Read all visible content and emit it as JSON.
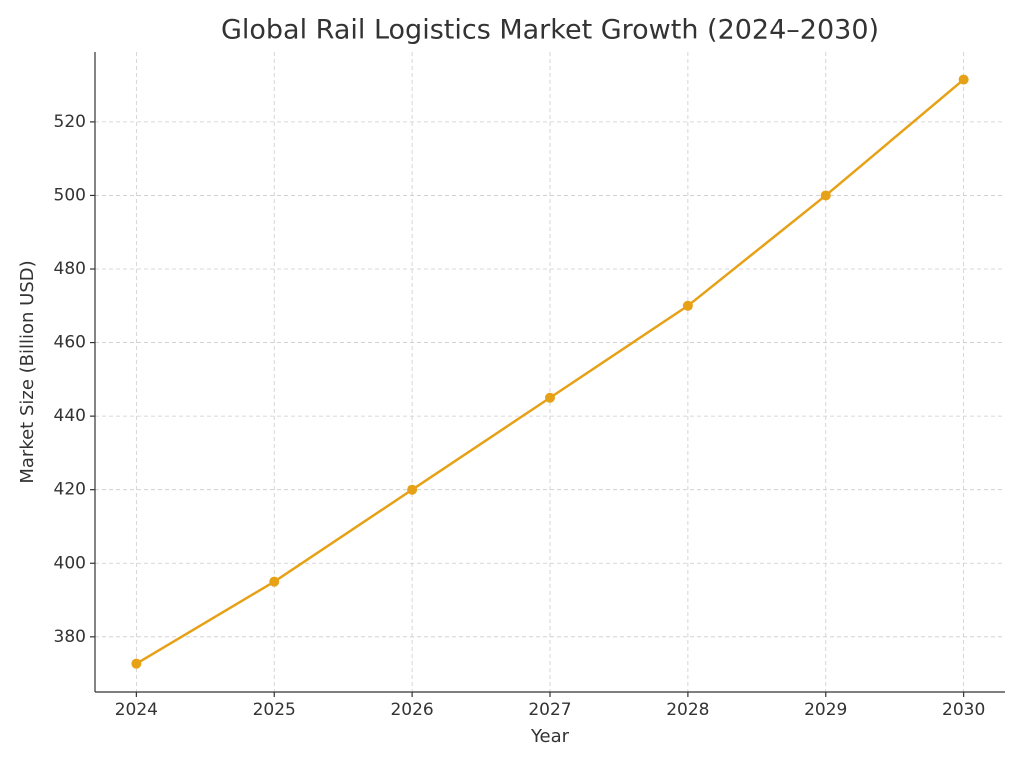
{
  "chart_data": {
    "type": "line",
    "title": "Global Rail Logistics Market Growth (2024–2030)",
    "x_label": "Year",
    "y_label": "Market Size (Billion USD)",
    "x": [
      2024,
      2025,
      2026,
      2027,
      2028,
      2029,
      2030
    ],
    "series": [
      {
        "name": "Market Size",
        "color": "#e6a117",
        "values": [
          372.7,
          395,
          420,
          445,
          470,
          500,
          531.5
        ]
      }
    ],
    "xlim": [
      2023.7,
      2030.3
    ],
    "xticks": [
      2024,
      2025,
      2026,
      2027,
      2028,
      2029,
      2030
    ],
    "ylim": [
      365,
      539
    ],
    "yticks": [
      380,
      400,
      420,
      440,
      460,
      480,
      500,
      520
    ],
    "grid": true
  }
}
